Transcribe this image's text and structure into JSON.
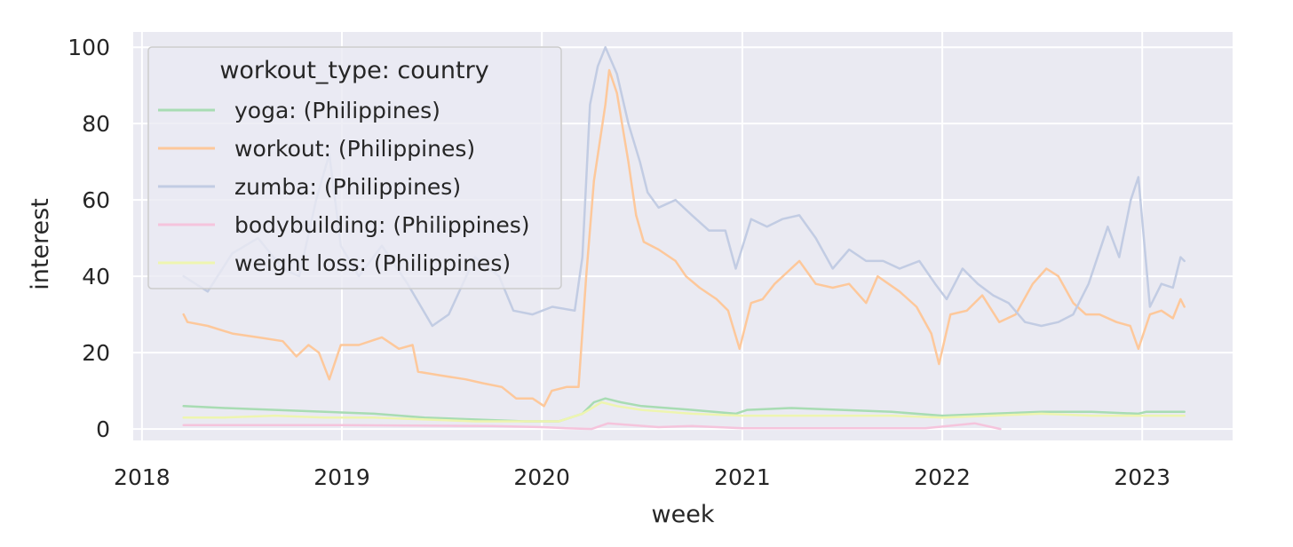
{
  "chart_data": {
    "type": "line",
    "title": "",
    "xlabel": "week",
    "ylabel": "interest",
    "xlim": [
      "2017-12-16",
      "2023-06-15"
    ],
    "ylim": [
      -3,
      104
    ],
    "x_ticks": [
      "2018",
      "2019",
      "2020",
      "2021",
      "2022",
      "2023"
    ],
    "y_ticks": [
      "0",
      "20",
      "40",
      "60",
      "80",
      "100"
    ],
    "grid": true,
    "legend": {
      "title": "workout_type: country",
      "placement": "upper-left"
    },
    "series": [
      {
        "name": "yoga: (Philippines)",
        "color": "#a8dcb3",
        "points": [
          [
            "2018-03-18",
            6
          ],
          [
            "2018-06-01",
            5.5
          ],
          [
            "2018-09-01",
            5
          ],
          [
            "2018-12-01",
            4.5
          ],
          [
            "2019-03-01",
            4
          ],
          [
            "2019-06-01",
            3
          ],
          [
            "2019-09-01",
            2.5
          ],
          [
            "2019-12-01",
            2
          ],
          [
            "2020-02-01",
            2
          ],
          [
            "2020-03-15",
            4
          ],
          [
            "2020-04-05",
            7
          ],
          [
            "2020-04-26",
            8
          ],
          [
            "2020-05-24",
            7
          ],
          [
            "2020-07-01",
            6
          ],
          [
            "2020-10-01",
            5
          ],
          [
            "2020-12-20",
            4
          ],
          [
            "2021-01-10",
            5
          ],
          [
            "2021-04-01",
            5.5
          ],
          [
            "2021-07-01",
            5
          ],
          [
            "2021-10-01",
            4.5
          ],
          [
            "2022-01-01",
            3.5
          ],
          [
            "2022-04-01",
            4
          ],
          [
            "2022-07-01",
            4.5
          ],
          [
            "2022-10-01",
            4.5
          ],
          [
            "2022-12-25",
            4
          ],
          [
            "2023-01-08",
            4.5
          ],
          [
            "2023-03-19",
            4.5
          ]
        ]
      },
      {
        "name": "workout: (Philippines)",
        "color": "#fdc89b",
        "points": [
          [
            "2018-03-18",
            30
          ],
          [
            "2018-03-25",
            28
          ],
          [
            "2018-05-01",
            27
          ],
          [
            "2018-06-15",
            25
          ],
          [
            "2018-08-01",
            24
          ],
          [
            "2018-09-15",
            23
          ],
          [
            "2018-10-10",
            19
          ],
          [
            "2018-11-01",
            22
          ],
          [
            "2018-11-20",
            20
          ],
          [
            "2018-12-09",
            13
          ],
          [
            "2018-12-30",
            22
          ],
          [
            "2019-02-01",
            22
          ],
          [
            "2019-03-15",
            24
          ],
          [
            "2019-04-15",
            21
          ],
          [
            "2019-05-10",
            22
          ],
          [
            "2019-05-20",
            15
          ],
          [
            "2019-07-01",
            14
          ],
          [
            "2019-08-15",
            13
          ],
          [
            "2019-09-15",
            12
          ],
          [
            "2019-10-20",
            11
          ],
          [
            "2019-11-15",
            8
          ],
          [
            "2019-12-15",
            8
          ],
          [
            "2020-01-05",
            6
          ],
          [
            "2020-01-19",
            10
          ],
          [
            "2020-02-15",
            11
          ],
          [
            "2020-03-08",
            11
          ],
          [
            "2020-03-22",
            40
          ],
          [
            "2020-04-05",
            65
          ],
          [
            "2020-04-26",
            85
          ],
          [
            "2020-05-03",
            94
          ],
          [
            "2020-05-17",
            88
          ],
          [
            "2020-06-07",
            70
          ],
          [
            "2020-06-21",
            56
          ],
          [
            "2020-07-05",
            49
          ],
          [
            "2020-08-01",
            47
          ],
          [
            "2020-09-01",
            44
          ],
          [
            "2020-09-20",
            40
          ],
          [
            "2020-10-15",
            37
          ],
          [
            "2020-11-15",
            34
          ],
          [
            "2020-12-06",
            31
          ],
          [
            "2020-12-27",
            21
          ],
          [
            "2021-01-17",
            33
          ],
          [
            "2021-02-07",
            34
          ],
          [
            "2021-03-01",
            38
          ],
          [
            "2021-04-15",
            44
          ],
          [
            "2021-05-15",
            38
          ],
          [
            "2021-06-15",
            37
          ],
          [
            "2021-07-15",
            38
          ],
          [
            "2021-08-15",
            33
          ],
          [
            "2021-09-05",
            40
          ],
          [
            "2021-10-15",
            36
          ],
          [
            "2021-11-15",
            32
          ],
          [
            "2021-12-12",
            25
          ],
          [
            "2021-12-26",
            17
          ],
          [
            "2022-01-16",
            30
          ],
          [
            "2022-02-15",
            31
          ],
          [
            "2022-03-15",
            35
          ],
          [
            "2022-04-15",
            28
          ],
          [
            "2022-05-15",
            30
          ],
          [
            "2022-06-15",
            38
          ],
          [
            "2022-07-10",
            42
          ],
          [
            "2022-08-01",
            40
          ],
          [
            "2022-08-28",
            33
          ],
          [
            "2022-09-20",
            30
          ],
          [
            "2022-10-15",
            30
          ],
          [
            "2022-11-15",
            28
          ],
          [
            "2022-12-10",
            27
          ],
          [
            "2022-12-25",
            21
          ],
          [
            "2023-01-15",
            30
          ],
          [
            "2023-02-05",
            31
          ],
          [
            "2023-02-26",
            29
          ],
          [
            "2023-03-12",
            34
          ],
          [
            "2023-03-19",
            32
          ]
        ]
      },
      {
        "name": "zumba: (Philippines)",
        "color": "#c2cce3",
        "points": [
          [
            "2018-03-18",
            40
          ],
          [
            "2018-05-01",
            36
          ],
          [
            "2018-06-15",
            46
          ],
          [
            "2018-08-01",
            50
          ],
          [
            "2018-09-15",
            42
          ],
          [
            "2018-10-15",
            40
          ],
          [
            "2018-11-15",
            60
          ],
          [
            "2018-12-09",
            72
          ],
          [
            "2018-12-30",
            48
          ],
          [
            "2019-02-01",
            40
          ],
          [
            "2019-03-15",
            48
          ],
          [
            "2019-05-01",
            38
          ],
          [
            "2019-06-15",
            27
          ],
          [
            "2019-07-15",
            30
          ],
          [
            "2019-09-01",
            45
          ],
          [
            "2019-10-15",
            40
          ],
          [
            "2019-11-10",
            31
          ],
          [
            "2019-12-15",
            30
          ],
          [
            "2020-01-20",
            32
          ],
          [
            "2020-03-01",
            31
          ],
          [
            "2020-03-15",
            45
          ],
          [
            "2020-03-29",
            85
          ],
          [
            "2020-04-12",
            95
          ],
          [
            "2020-04-26",
            100
          ],
          [
            "2020-05-17",
            93
          ],
          [
            "2020-06-07",
            80
          ],
          [
            "2020-06-28",
            70
          ],
          [
            "2020-07-12",
            62
          ],
          [
            "2020-08-01",
            58
          ],
          [
            "2020-09-01",
            60
          ],
          [
            "2020-10-01",
            56
          ],
          [
            "2020-11-01",
            52
          ],
          [
            "2020-12-01",
            52
          ],
          [
            "2020-12-20",
            42
          ],
          [
            "2021-01-17",
            55
          ],
          [
            "2021-02-15",
            53
          ],
          [
            "2021-03-15",
            55
          ],
          [
            "2021-04-15",
            56
          ],
          [
            "2021-05-15",
            50
          ],
          [
            "2021-06-15",
            42
          ],
          [
            "2021-07-15",
            47
          ],
          [
            "2021-08-15",
            44
          ],
          [
            "2021-09-15",
            44
          ],
          [
            "2021-10-15",
            42
          ],
          [
            "2021-11-20",
            44
          ],
          [
            "2021-12-19",
            38
          ],
          [
            "2022-01-09",
            34
          ],
          [
            "2022-02-07",
            42
          ],
          [
            "2022-03-07",
            38
          ],
          [
            "2022-04-04",
            35
          ],
          [
            "2022-05-02",
            33
          ],
          [
            "2022-06-01",
            28
          ],
          [
            "2022-07-01",
            27
          ],
          [
            "2022-08-01",
            28
          ],
          [
            "2022-08-28",
            30
          ],
          [
            "2022-09-25",
            38
          ],
          [
            "2022-10-30",
            53
          ],
          [
            "2022-11-20",
            45
          ],
          [
            "2022-12-11",
            60
          ],
          [
            "2022-12-25",
            66
          ],
          [
            "2023-01-15",
            32
          ],
          [
            "2023-02-05",
            38
          ],
          [
            "2023-02-26",
            37
          ],
          [
            "2023-03-12",
            45
          ],
          [
            "2023-03-19",
            44
          ]
        ]
      },
      {
        "name": "bodybuilding: (Philippines)",
        "color": "#f5c4dc",
        "points": [
          [
            "2018-03-18",
            1
          ],
          [
            "2019-01-01",
            1
          ],
          [
            "2019-10-01",
            0.8
          ],
          [
            "2020-01-01",
            0.5
          ],
          [
            "2020-02-15",
            0.2
          ],
          [
            "2020-04-01",
            0
          ],
          [
            "2020-05-01",
            1.5
          ],
          [
            "2020-08-01",
            0.5
          ],
          [
            "2020-10-01",
            0.8
          ],
          [
            "2021-01-01",
            0.2
          ],
          [
            "2021-06-01",
            0.2
          ],
          [
            "2021-12-01",
            0.2
          ],
          [
            "2022-03-01",
            1.5
          ],
          [
            "2022-04-17",
            0
          ]
        ]
      },
      {
        "name": "weight loss: (Philippines)",
        "color": "#eef5b0",
        "points": [
          [
            "2018-03-18",
            3
          ],
          [
            "2018-06-01",
            3
          ],
          [
            "2018-09-01",
            3.5
          ],
          [
            "2018-12-01",
            3
          ],
          [
            "2019-03-01",
            3
          ],
          [
            "2019-06-01",
            2.5
          ],
          [
            "2019-09-01",
            2
          ],
          [
            "2019-12-01",
            2
          ],
          [
            "2020-02-01",
            2
          ],
          [
            "2020-03-15",
            4
          ],
          [
            "2020-04-19",
            7
          ],
          [
            "2020-05-17",
            6
          ],
          [
            "2020-07-01",
            5
          ],
          [
            "2020-10-01",
            4
          ],
          [
            "2021-01-01",
            3.5
          ],
          [
            "2021-04-01",
            3.5
          ],
          [
            "2021-07-01",
            3.5
          ],
          [
            "2021-10-01",
            3.5
          ],
          [
            "2022-01-01",
            3
          ],
          [
            "2022-04-01",
            3.5
          ],
          [
            "2022-07-01",
            4
          ],
          [
            "2022-10-01",
            3.5
          ],
          [
            "2023-01-01",
            3.5
          ],
          [
            "2023-03-19",
            3.5
          ]
        ]
      }
    ]
  }
}
